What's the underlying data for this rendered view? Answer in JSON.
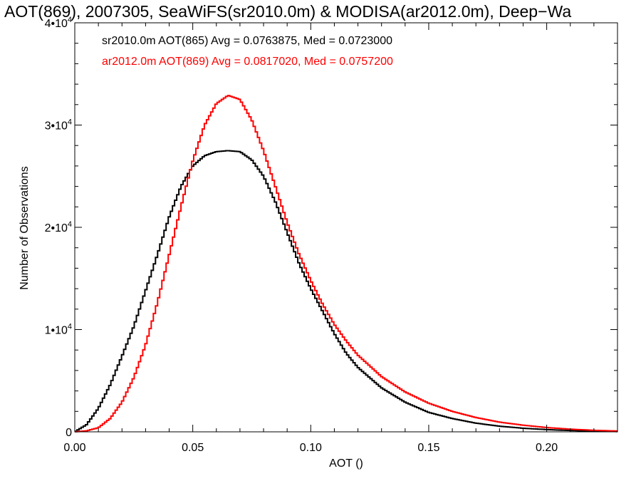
{
  "chart_data": {
    "type": "line",
    "title": "AOT(869), 2007305, SeaWiFS(sr2010.0m) & MODISA(ar2012.0m), Deep−Wa",
    "xlabel": "AOT ()",
    "ylabel": "Number of Observations",
    "xlim": [
      0.0,
      0.23
    ],
    "ylim": [
      0,
      40000
    ],
    "x_ticks": [
      0.0,
      0.05,
      0.1,
      0.15,
      0.2
    ],
    "x_tick_labels": [
      "0.00",
      "0.05",
      "0.10",
      "0.15",
      "0.20"
    ],
    "y_ticks": [
      0,
      10000,
      20000,
      30000,
      40000
    ],
    "y_tick_labels": [
      {
        "base": "0",
        "exp": ""
      },
      {
        "base": "1•10",
        "exp": "4"
      },
      {
        "base": "2•10",
        "exp": "4"
      },
      {
        "base": "3•10",
        "exp": "4"
      },
      {
        "base": "4•10",
        "exp": "4"
      }
    ],
    "grid": false,
    "legend_position": "top-left",
    "series": [
      {
        "legend": "sr2010.0m AOT(865) Avg = 0.0763875, Med = 0.0723000",
        "color": "#000000",
        "x": [
          0.0,
          0.005,
          0.01,
          0.015,
          0.02,
          0.025,
          0.03,
          0.035,
          0.04,
          0.045,
          0.05,
          0.055,
          0.06,
          0.065,
          0.07,
          0.075,
          0.08,
          0.085,
          0.09,
          0.095,
          0.1,
          0.105,
          0.11,
          0.115,
          0.12,
          0.13,
          0.14,
          0.15,
          0.16,
          0.17,
          0.18,
          0.19,
          0.2,
          0.21,
          0.22,
          0.23
        ],
        "y": [
          0,
          700,
          2300,
          4600,
          7400,
          10300,
          13800,
          17300,
          21000,
          24000,
          26000,
          27000,
          27400,
          27500,
          27400,
          26600,
          25000,
          22500,
          19500,
          16500,
          14000,
          11800,
          9600,
          7700,
          6300,
          4300,
          2900,
          1900,
          1300,
          850,
          550,
          350,
          220,
          130,
          70,
          30
        ]
      },
      {
        "legend": "ar2012.0m AOT(869) Avg = 0.0817020, Med = 0.0757200",
        "color": "#ff0000",
        "x": [
          0.0,
          0.005,
          0.01,
          0.015,
          0.02,
          0.025,
          0.03,
          0.035,
          0.04,
          0.045,
          0.05,
          0.055,
          0.06,
          0.065,
          0.07,
          0.075,
          0.08,
          0.085,
          0.09,
          0.095,
          0.1,
          0.105,
          0.11,
          0.115,
          0.12,
          0.13,
          0.14,
          0.15,
          0.16,
          0.17,
          0.18,
          0.19,
          0.2,
          0.21,
          0.22,
          0.23
        ],
        "y": [
          0,
          100,
          400,
          1300,
          2900,
          5300,
          8500,
          12600,
          17300,
          22000,
          26500,
          30000,
          32100,
          32900,
          32500,
          30500,
          27500,
          24000,
          20500,
          17400,
          14800,
          12500,
          10500,
          8900,
          7500,
          5400,
          3900,
          2800,
          2000,
          1400,
          950,
          650,
          420,
          260,
          150,
          80
        ]
      }
    ]
  }
}
